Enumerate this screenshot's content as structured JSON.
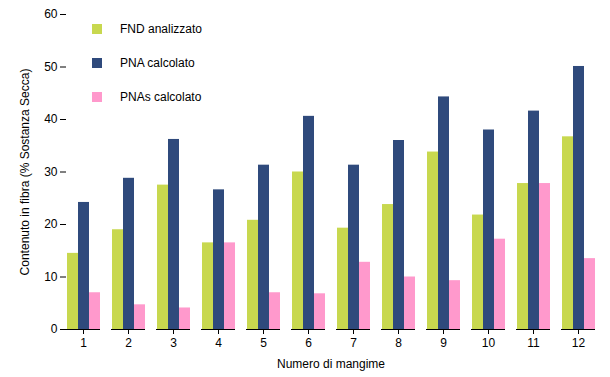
{
  "chart_data": {
    "type": "bar",
    "x_label": "Numero di mangime",
    "y_label": "Contenuto in fibra (% Sostanza Secca)",
    "categories": [
      "1",
      "2",
      "3",
      "4",
      "5",
      "6",
      "7",
      "8",
      "9",
      "10",
      "11",
      "12"
    ],
    "series": [
      {
        "name": "FND analizzato",
        "color": "#c8d84f",
        "values": [
          14.5,
          19,
          27.5,
          16.5,
          20.8,
          30,
          19.3,
          23.8,
          33.8,
          21.8,
          27.8,
          36.7
        ]
      },
      {
        "name": "PNA calcolato",
        "color": "#2f4a7c",
        "values": [
          24.2,
          28.8,
          36.2,
          26.6,
          31.3,
          40.6,
          31.3,
          36,
          44.3,
          38,
          41.6,
          50.1
        ]
      },
      {
        "name": "PNAs calcolato",
        "color": "#ff99cc",
        "values": [
          7,
          4.7,
          4.1,
          16.5,
          7,
          6.8,
          12.8,
          10,
          9.3,
          17.2,
          27.8,
          13.5
        ]
      }
    ],
    "ylim": [
      0,
      60
    ],
    "yticks": [
      0,
      10,
      20,
      30,
      40,
      50,
      60
    ],
    "grid": false,
    "legend": "top-left"
  }
}
